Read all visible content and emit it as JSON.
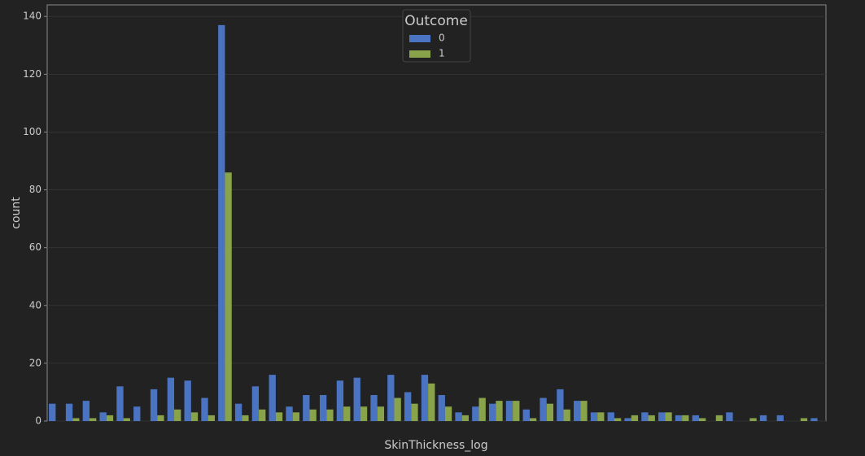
{
  "chart_data": {
    "type": "bar",
    "x_label": "SkinThickness_log",
    "y_label": "count",
    "legend_title": "Outcome",
    "legend_position": "upper center",
    "categories": [
      null,
      null,
      null,
      null,
      null,
      null,
      null,
      null,
      null,
      null,
      null,
      null,
      null,
      null,
      null,
      null,
      null,
      null,
      null,
      null,
      null,
      null,
      null,
      null,
      null,
      null,
      null,
      null,
      null,
      null,
      null,
      null,
      null,
      null,
      null,
      null,
      null,
      null,
      null,
      null,
      null,
      null,
      null,
      null,
      null,
      null
    ],
    "series": [
      {
        "name": "0",
        "color": "#4a74c2",
        "values": [
          6,
          6,
          7,
          3,
          12,
          5,
          11,
          15,
          14,
          8,
          137,
          6,
          12,
          16,
          5,
          9,
          9,
          14,
          15,
          9,
          16,
          10,
          16,
          9,
          3,
          5,
          6,
          7,
          4,
          8,
          11,
          7,
          3,
          3,
          1,
          3,
          3,
          2,
          2,
          0,
          3,
          0,
          2,
          2,
          0,
          1
        ]
      },
      {
        "name": "1",
        "color": "#88a34a",
        "values": [
          0,
          1,
          1,
          2,
          1,
          0,
          2,
          4,
          3,
          2,
          86,
          2,
          4,
          3,
          3,
          4,
          4,
          5,
          5,
          5,
          8,
          6,
          13,
          5,
          2,
          8,
          7,
          7,
          1,
          6,
          4,
          7,
          3,
          1,
          2,
          2,
          3,
          2,
          1,
          2,
          0,
          1,
          0,
          0,
          1,
          0
        ]
      }
    ],
    "ylim": [
      0,
      144
    ],
    "yticks": [
      0,
      20,
      40,
      60,
      80,
      100,
      120,
      140
    ],
    "grid": true
  }
}
